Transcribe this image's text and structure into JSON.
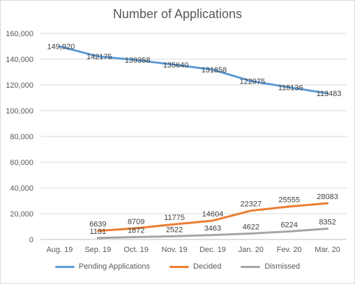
{
  "chart_data": {
    "type": "line",
    "title": "Number of Applications",
    "categories": [
      "Aug. 19",
      "Sep. 19",
      "Oct. 19",
      "Nov. 19",
      "Dec. 19",
      "Jan. 20",
      "Fev. 20",
      "Mar. 20"
    ],
    "ylim": [
      0,
      160000
    ],
    "yticks": [
      "0",
      "20,000",
      "40,000",
      "60,000",
      "80,000",
      "100,000",
      "120,000",
      "140,000",
      "160,000"
    ],
    "grid": true,
    "legend": "bottom",
    "series": [
      {
        "name": "Pending Applications",
        "color": "#5b9bd5",
        "values": [
          149920,
          142175,
          139358,
          135640,
          131858,
          122975,
          118136,
          113483
        ],
        "labels": [
          "149,920",
          "142175",
          "139358",
          "135640",
          "131858",
          "122975",
          "118136",
          "113483"
        ]
      },
      {
        "name": "Decided",
        "color": "#ed7d31",
        "values": [
          null,
          6639,
          8709,
          11775,
          14604,
          22327,
          25555,
          28083
        ],
        "labels": [
          null,
          "6639",
          "8709",
          "11775",
          "14604",
          "22327",
          "25555",
          "28083"
        ]
      },
      {
        "name": "Dismissed",
        "color": "#a5a5a5",
        "values": [
          null,
          1131,
          1872,
          2522,
          3463,
          4622,
          6224,
          8352
        ],
        "labels": [
          null,
          "1131",
          "1872",
          "2522",
          "3463",
          "4622",
          "6224",
          "8352"
        ]
      }
    ]
  }
}
